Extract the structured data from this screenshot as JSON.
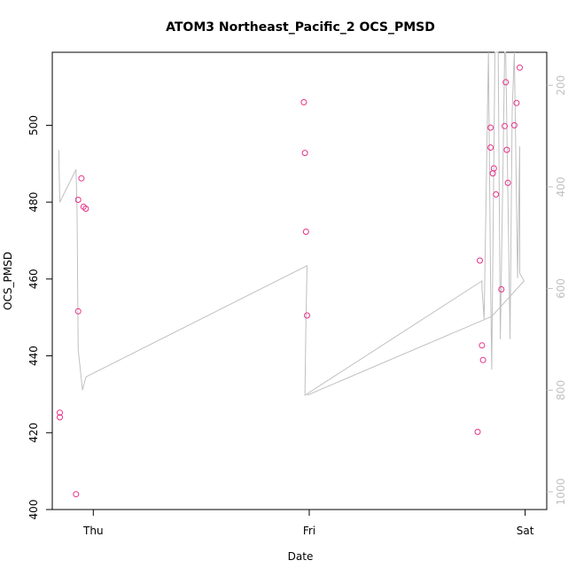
{
  "chart_data": {
    "type": "scatter",
    "title": "ATOM3 Northeast_Pacific_2 OCS_PMSD",
    "xlabel": "Date",
    "ylabel": "OCS_PMSD",
    "x_ticks": [
      {
        "label": "Thu",
        "value": 0.0
      },
      {
        "label": "Fri",
        "value": 1.0
      },
      {
        "label": "Sat",
        "value": 2.0
      }
    ],
    "xlim": [
      -0.19,
      2.1
    ],
    "ylim": [
      400,
      519
    ],
    "y_ticks": [
      400,
      420,
      440,
      460,
      480,
      500
    ],
    "y2_ticks": [
      200,
      400,
      600,
      800,
      1000
    ],
    "y2lim": [
      1035,
      135
    ],
    "grid": false,
    "colors": {
      "points": "#e8308a",
      "line": "#c0c0c0",
      "axis": "#000000",
      "right_axis": "#c0c0c0"
    },
    "series": [
      {
        "kind": "points",
        "x": [
          -0.155,
          -0.155,
          -0.08,
          -0.07,
          -0.07,
          -0.055,
          -0.045,
          -0.035,
          0.975,
          0.98,
          0.985,
          0.99,
          1.78,
          1.79,
          1.8,
          1.805,
          1.84,
          1.84,
          1.85,
          1.855,
          1.865,
          1.89,
          1.905,
          1.91,
          1.915,
          1.92,
          1.95,
          1.96,
          1.975
        ],
        "y": [
          425.2,
          424,
          404,
          451.6,
          480.6,
          486.2,
          478.8,
          478.3,
          506,
          492.8,
          472.3,
          450.5,
          420.2,
          464.8,
          442.7,
          438.9,
          499.4,
          494.2,
          487.5,
          488.8,
          482,
          457.3,
          499.8,
          511.2,
          493.6,
          485,
          500,
          505.8,
          515
        ]
      },
      {
        "kind": "line",
        "x": [
          -0.16,
          -0.155,
          -0.08,
          -0.075,
          -0.07,
          -0.055,
          -0.05,
          -0.035,
          -0.03,
          0.99,
          0.985,
          0.98,
          1.8,
          1.8,
          1.81,
          1.83,
          1.84,
          1.845,
          1.86,
          1.87,
          1.875,
          1.885,
          1.895,
          1.905,
          1.91,
          1.93,
          1.94,
          1.95,
          1.965,
          1.975,
          1.975,
          1.995,
          1.845,
          0.99
        ],
        "y2": [
          327,
          430,
          366,
          450,
          720,
          780,
          800,
          775,
          773,
          555,
          660,
          810,
          585,
          600,
          660,
          135,
          590,
          760,
          135,
          135,
          135,
          700,
          430,
          135,
          135,
          700,
          250,
          135,
          580,
          320,
          570,
          585,
          655,
          810
        ]
      }
    ]
  }
}
